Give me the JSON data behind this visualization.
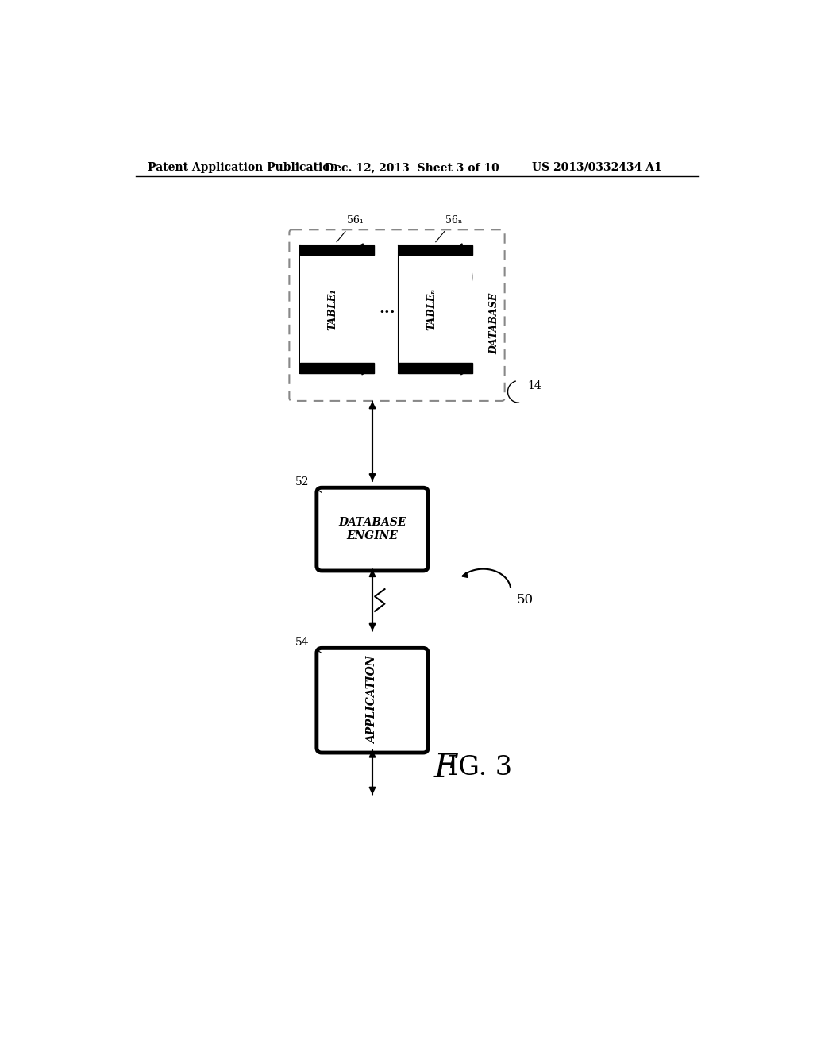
{
  "bg_color": "#ffffff",
  "header_left": "Patent Application Publication",
  "header_mid": "Dec. 12, 2013  Sheet 3 of 10",
  "header_right": "US 2013/0332434 A1",
  "fig_label": "FIG. 3",
  "diagram_ref": "50",
  "db_ref": "14",
  "db_label": "DATABASE",
  "table1_label": "TABLE₁",
  "table1_ref": "56₁",
  "tableN_label": "TABLEₙ",
  "tableN_ref": "56ₙ",
  "dbengine_label": "DATABASE\nENGINE",
  "dbengine_ref": "52",
  "app_label": "APPLICATION",
  "app_ref": "54"
}
